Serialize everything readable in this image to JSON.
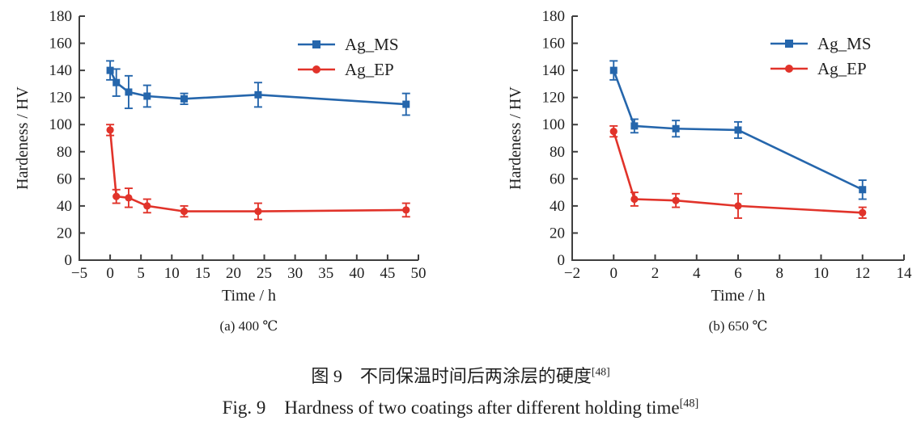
{
  "page": {
    "background": "#ffffff"
  },
  "colors": {
    "ag_ms_blue": "#2566ac",
    "ag_ep_red": "#e1332a",
    "axis_gray": "#3f3f3f",
    "text_black": "#1f1f1f"
  },
  "captions": {
    "zh": {
      "prefix": "图 9",
      "text": "不同保温时间后两涂层的硬度",
      "ref": "[48]"
    },
    "en": {
      "prefix": "Fig. 9",
      "text": "Hardness of two coatings after different holding time",
      "ref": "[48]"
    }
  },
  "chart_data": [
    {
      "type": "line",
      "title": "(a) 400 ℃",
      "xlabel": "Time / h",
      "ylabel": "Hardeness / HV",
      "xlim": [
        -5,
        50
      ],
      "ylim": [
        0,
        180
      ],
      "xticks": [
        -5,
        0,
        5,
        10,
        15,
        20,
        25,
        30,
        35,
        40,
        45,
        50
      ],
      "yticks": [
        0,
        20,
        40,
        60,
        80,
        100,
        120,
        140,
        160,
        180
      ],
      "grid": false,
      "legend_position": "upper-right",
      "series": [
        {
          "name": "Ag_MS",
          "color": "#2566ac",
          "marker": "square",
          "x": [
            0,
            1,
            3,
            6,
            12,
            24,
            48
          ],
          "y": [
            140,
            131,
            124,
            121,
            119,
            122,
            115
          ],
          "yerr": [
            7,
            10,
            12,
            8,
            4,
            9,
            8
          ]
        },
        {
          "name": "Ag_EP",
          "color": "#e1332a",
          "marker": "circle",
          "x": [
            0,
            1,
            3,
            6,
            12,
            24,
            48
          ],
          "y": [
            96,
            47,
            46,
            40,
            36,
            36,
            37
          ],
          "yerr": [
            4,
            5,
            7,
            5,
            4,
            6,
            5
          ]
        }
      ]
    },
    {
      "type": "line",
      "title": "(b) 650 ℃",
      "xlabel": "Time / h",
      "ylabel": "Hardeness / HV",
      "xlim": [
        -2,
        14
      ],
      "ylim": [
        0,
        180
      ],
      "xticks": [
        -2,
        0,
        2,
        4,
        6,
        8,
        10,
        12,
        14
      ],
      "yticks": [
        0,
        20,
        40,
        60,
        80,
        100,
        120,
        140,
        160,
        180
      ],
      "grid": false,
      "legend_position": "upper-right",
      "series": [
        {
          "name": "Ag_MS",
          "color": "#2566ac",
          "marker": "square",
          "x": [
            0,
            1,
            3,
            6,
            12
          ],
          "y": [
            140,
            99,
            97,
            96,
            52
          ],
          "yerr": [
            7,
            5,
            6,
            6,
            7
          ]
        },
        {
          "name": "Ag_EP",
          "color": "#e1332a",
          "marker": "circle",
          "x": [
            0,
            1,
            3,
            6,
            12
          ],
          "y": [
            95,
            45,
            44,
            40,
            35
          ],
          "yerr": [
            4,
            5,
            5,
            9,
            4
          ]
        }
      ]
    }
  ]
}
